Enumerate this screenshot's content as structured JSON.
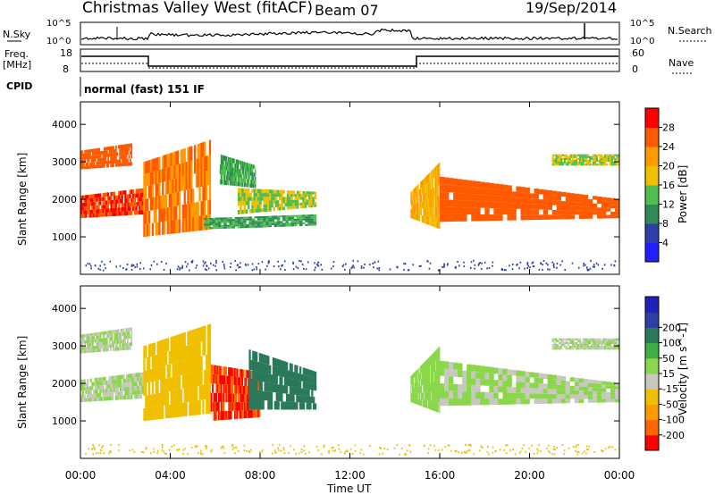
{
  "header": {
    "station": "Christmas Valley West (fitACF)",
    "beam": "Beam 07",
    "date": "19/Sep/2014"
  },
  "top_panels": {
    "nsky_label": "N.Sky",
    "nsky_ticks": [
      "10^5",
      "10^0"
    ],
    "nsearch_label": "N.Search",
    "nsearch_ticks": [
      "10^5",
      "10^0"
    ],
    "freq_label": "Freq.",
    "freq_unit": "[MHz]",
    "freq_ticks": [
      "18",
      "8"
    ],
    "nave_label": "Nave",
    "nave_ticks": [
      "60",
      "0"
    ],
    "cpid_label": "CPID",
    "cpid_text": "normal (fast) 151 IF"
  },
  "colors": {
    "power": [
      "#2020ff",
      "#2c3ea8",
      "#2e8b57",
      "#4fbf4f",
      "#f0c000",
      "#ff9a00",
      "#ff5a00",
      "#ff0000"
    ],
    "velocity": [
      "#ff0000",
      "#ff6600",
      "#ff9a00",
      "#f0c000",
      "#c8c8c0",
      "#8ad84a",
      "#3cb040",
      "#2a7a5a",
      "#2c3ea8",
      "#2020c0"
    ]
  },
  "chart_data": [
    {
      "type": "heatmap",
      "name": "power",
      "ylabel": "Slant Range [km]",
      "yticks": [
        "1000",
        "2000",
        "3000",
        "4000"
      ],
      "ylim": [
        0,
        4600
      ],
      "colorbar_label": "Power [dB]",
      "colorbar_ticks": [
        "4",
        "8",
        "12",
        "16",
        "20",
        "24",
        "28"
      ],
      "colorbar_range": [
        0,
        32
      ],
      "xlim": [
        0,
        24
      ],
      "bands": [
        {
          "x": [
            0.0,
            2.8
          ],
          "y0": [
            1500,
            1600
          ],
          "y1": [
            2100,
            2300
          ],
          "value": 28
        },
        {
          "x": [
            0.0,
            2.3
          ],
          "y0": [
            2800,
            2900
          ],
          "y1": [
            3300,
            3500
          ],
          "value": 26
        },
        {
          "x": [
            2.8,
            5.8
          ],
          "y0": [
            1000,
            1200
          ],
          "y1": [
            3000,
            3600
          ],
          "value": 24
        },
        {
          "x": [
            5.5,
            10.5
          ],
          "y0": [
            1200,
            1300
          ],
          "y1": [
            1500,
            1600
          ],
          "value": 12
        },
        {
          "x": [
            7.0,
            10.5
          ],
          "y0": [
            1600,
            1800
          ],
          "y1": [
            2300,
            2200
          ],
          "value": 16
        },
        {
          "x": [
            6.2,
            7.8
          ],
          "y0": [
            2400,
            2300
          ],
          "y1": [
            3200,
            2900
          ],
          "value": 12
        },
        {
          "x": [
            14.7,
            16.0
          ],
          "y0": [
            1500,
            1200
          ],
          "y1": [
            2200,
            3000
          ],
          "value": 20
        },
        {
          "x": [
            16.0,
            24.0
          ],
          "y0": [
            1400,
            1500
          ],
          "y1": [
            2600,
            2000
          ],
          "value": 26
        },
        {
          "x": [
            21.0,
            24.0
          ],
          "y0": [
            2900,
            2900
          ],
          "y1": [
            3200,
            3200
          ],
          "value": 16
        }
      ]
    },
    {
      "type": "heatmap",
      "name": "velocity",
      "ylabel": "Slant Range [km]",
      "yticks": [
        "1000",
        "2000",
        "3000",
        "4000"
      ],
      "ylim": [
        0,
        4600
      ],
      "colorbar_label": "Velocity [m s^-1]",
      "colorbar_ticks": [
        "-200",
        "-100",
        "-50",
        "-15",
        "15",
        "50",
        "100",
        "200"
      ],
      "colorbar_range": [
        -250,
        250
      ],
      "xlabel": "Time UT",
      "xticks": [
        "00:00",
        "04:00",
        "08:00",
        "12:00",
        "16:00",
        "20:00",
        "00:00"
      ],
      "xlim": [
        0,
        24
      ],
      "bands": [
        {
          "x": [
            0.0,
            2.8
          ],
          "y0": [
            1500,
            1600
          ],
          "y1": [
            2100,
            2300
          ],
          "value": 0
        },
        {
          "x": [
            0.0,
            2.3
          ],
          "y0": [
            2800,
            2900
          ],
          "y1": [
            3300,
            3500
          ],
          "value": 0
        },
        {
          "x": [
            2.8,
            5.8
          ],
          "y0": [
            1000,
            1200
          ],
          "y1": [
            3000,
            3600
          ],
          "value": -60
        },
        {
          "x": [
            5.8,
            8.0
          ],
          "y0": [
            1000,
            1100
          ],
          "y1": [
            2500,
            2300
          ],
          "value": -200
        },
        {
          "x": [
            7.5,
            10.5
          ],
          "y0": [
            1300,
            1300
          ],
          "y1": [
            2900,
            2300
          ],
          "value": 120
        },
        {
          "x": [
            14.7,
            16.0
          ],
          "y0": [
            1500,
            1200
          ],
          "y1": [
            2200,
            3000
          ],
          "value": 40
        },
        {
          "x": [
            16.0,
            24.0
          ],
          "y0": [
            1400,
            1500
          ],
          "y1": [
            2600,
            2000
          ],
          "value": 0
        },
        {
          "x": [
            21.0,
            24.0
          ],
          "y0": [
            2900,
            2900
          ],
          "y1": [
            3200,
            3200
          ],
          "value": 0
        }
      ]
    }
  ]
}
